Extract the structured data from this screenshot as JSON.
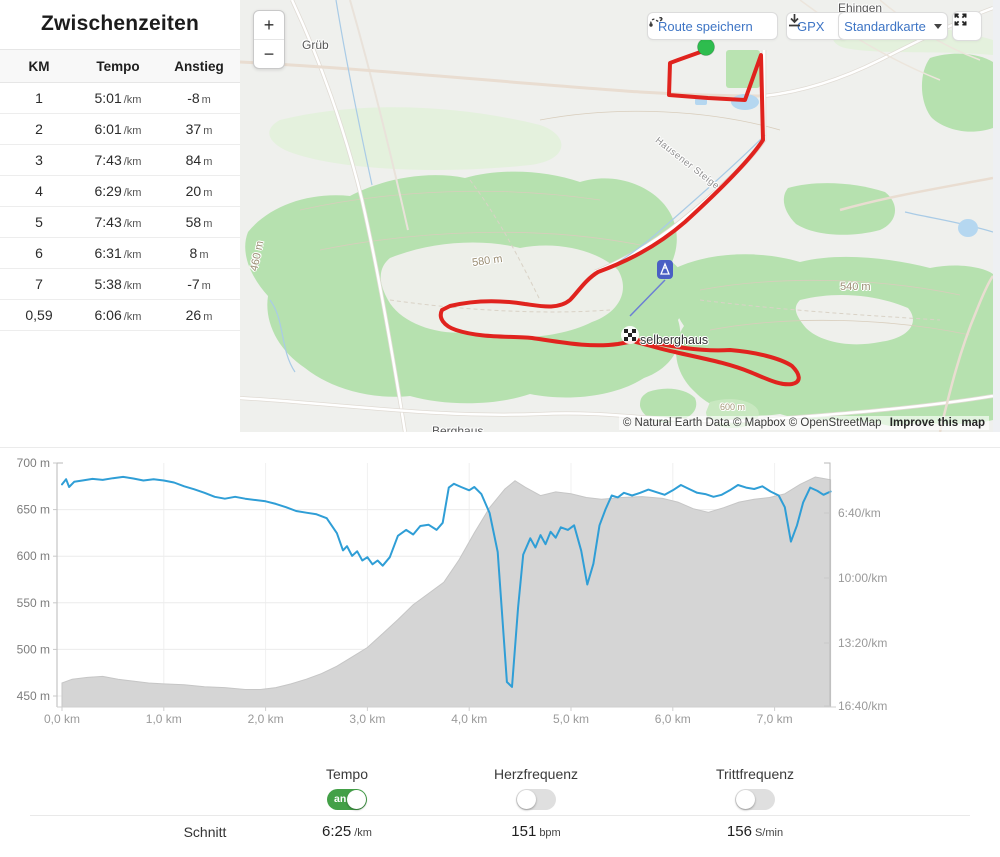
{
  "splits": {
    "title": "Zwischenzeiten",
    "columns": [
      "KM",
      "Tempo",
      "Anstieg"
    ],
    "rows": [
      {
        "km": "1",
        "tempo": "5:01",
        "tempo_unit": "/km",
        "anstieg": "-8",
        "anstieg_unit": "m"
      },
      {
        "km": "2",
        "tempo": "6:01",
        "tempo_unit": "/km",
        "anstieg": "37",
        "anstieg_unit": "m"
      },
      {
        "km": "3",
        "tempo": "7:43",
        "tempo_unit": "/km",
        "anstieg": "84",
        "anstieg_unit": "m"
      },
      {
        "km": "4",
        "tempo": "6:29",
        "tempo_unit": "/km",
        "anstieg": "20",
        "anstieg_unit": "m"
      },
      {
        "km": "5",
        "tempo": "7:43",
        "tempo_unit": "/km",
        "anstieg": "58",
        "anstieg_unit": "m"
      },
      {
        "km": "6",
        "tempo": "6:31",
        "tempo_unit": "/km",
        "anstieg": "8",
        "anstieg_unit": "m"
      },
      {
        "km": "7",
        "tempo": "5:38",
        "tempo_unit": "/km",
        "anstieg": "-7",
        "anstieg_unit": "m"
      },
      {
        "km": "0,59",
        "tempo": "6:06",
        "tempo_unit": "/km",
        "anstieg": "26",
        "anstieg_unit": "m"
      }
    ]
  },
  "map": {
    "zoom_in": "+",
    "zoom_out": "−",
    "buttons": {
      "save_route": "Route speichern",
      "gpx": "GPX",
      "style": "Standardkarte"
    },
    "labels": {
      "ehingen": "Ehingen",
      "grueb": "Grüb",
      "contour_580": "580 m",
      "contour_540": "540 m",
      "contour_460": "460 m",
      "contour_600": "600 m",
      "selberghaus": "selberghaus",
      "berghaus": "Berghaus",
      "street": "Hausener Steige"
    },
    "attribution": {
      "copyright": "© Natural Earth Data © Mapbox © OpenStreetMap",
      "improve_link": "Improve this map"
    },
    "colors": {
      "route": "#e0231e",
      "start_marker": "#2ebd4e",
      "forest": "#b6e1af",
      "water": "#b5d7f0"
    }
  },
  "chart_data": {
    "type": "area+line",
    "x_axis": {
      "unit": "km",
      "range": [
        0,
        7.55
      ],
      "ticks": [
        {
          "label": "0,0 km",
          "value": 0
        },
        {
          "label": "1,0 km",
          "value": 1
        },
        {
          "label": "2,0 km",
          "value": 2
        },
        {
          "label": "3,0 km",
          "value": 3
        },
        {
          "label": "4,0 km",
          "value": 4
        },
        {
          "label": "5,0 km",
          "value": 5
        },
        {
          "label": "6,0 km",
          "value": 6
        },
        {
          "label": "7,0 km",
          "value": 7
        }
      ]
    },
    "left_axis": {
      "name": "elevation",
      "unit": "m",
      "range": [
        438,
        700
      ],
      "ticks": [
        {
          "label": "700 m",
          "value": 700
        },
        {
          "label": "650 m",
          "value": 650
        },
        {
          "label": "600 m",
          "value": 600
        },
        {
          "label": "550 m",
          "value": 550
        },
        {
          "label": "500 m",
          "value": 500
        },
        {
          "label": "450 m",
          "value": 450
        }
      ]
    },
    "right_axis": {
      "name": "pace",
      "unit": "min/km",
      "range_seconds": [
        246,
        997
      ],
      "ticks": [
        {
          "label": "6:40/km",
          "value": 400
        },
        {
          "label": "10:00/km",
          "value": 600
        },
        {
          "label": "13:20/km",
          "value": 800
        },
        {
          "label": "16:40/km",
          "value": 1000
        }
      ]
    },
    "series": [
      {
        "name": "elevation",
        "type": "area",
        "color": "#d5d5d5",
        "axis": "left",
        "points": [
          [
            0,
            464
          ],
          [
            0.1,
            468
          ],
          [
            0.25,
            470
          ],
          [
            0.4,
            471
          ],
          [
            0.55,
            468
          ],
          [
            0.7,
            466
          ],
          [
            0.85,
            464
          ],
          [
            1.0,
            463
          ],
          [
            1.2,
            462
          ],
          [
            1.4,
            460
          ],
          [
            1.6,
            459
          ],
          [
            1.8,
            457
          ],
          [
            1.95,
            457
          ],
          [
            2.1,
            459
          ],
          [
            2.25,
            463
          ],
          [
            2.4,
            468
          ],
          [
            2.55,
            474
          ],
          [
            2.7,
            482
          ],
          [
            2.85,
            492
          ],
          [
            3.0,
            502
          ],
          [
            3.15,
            517
          ],
          [
            3.3,
            532
          ],
          [
            3.45,
            548
          ],
          [
            3.6,
            560
          ],
          [
            3.75,
            572
          ],
          [
            3.9,
            596
          ],
          [
            4.05,
            625
          ],
          [
            4.2,
            652
          ],
          [
            4.35,
            672
          ],
          [
            4.45,
            681
          ],
          [
            4.55,
            674
          ],
          [
            4.7,
            665
          ],
          [
            4.85,
            669
          ],
          [
            5.0,
            667
          ],
          [
            5.15,
            663
          ],
          [
            5.3,
            661
          ],
          [
            5.5,
            663
          ],
          [
            5.7,
            664
          ],
          [
            5.9,
            662
          ],
          [
            6.05,
            658
          ],
          [
            6.2,
            651
          ],
          [
            6.35,
            647
          ],
          [
            6.5,
            652
          ],
          [
            6.65,
            658
          ],
          [
            6.8,
            661
          ],
          [
            6.95,
            663
          ],
          [
            7.1,
            667
          ],
          [
            7.25,
            677
          ],
          [
            7.4,
            685
          ],
          [
            7.55,
            682
          ]
        ]
      },
      {
        "name": "pace",
        "type": "line",
        "color": "#2f9ed6",
        "axis": "right",
        "points": [
          [
            0,
            312
          ],
          [
            0.04,
            296
          ],
          [
            0.07,
            320
          ],
          [
            0.12,
            304
          ],
          [
            0.2,
            300
          ],
          [
            0.3,
            295
          ],
          [
            0.4,
            298
          ],
          [
            0.5,
            293
          ],
          [
            0.6,
            289
          ],
          [
            0.7,
            294
          ],
          [
            0.8,
            300
          ],
          [
            0.9,
            296
          ],
          [
            1.0,
            300
          ],
          [
            1.1,
            306
          ],
          [
            1.2,
            318
          ],
          [
            1.3,
            327
          ],
          [
            1.4,
            338
          ],
          [
            1.5,
            350
          ],
          [
            1.6,
            356
          ],
          [
            1.7,
            350
          ],
          [
            1.8,
            356
          ],
          [
            1.9,
            360
          ],
          [
            2.0,
            364
          ],
          [
            2.1,
            372
          ],
          [
            2.2,
            382
          ],
          [
            2.3,
            394
          ],
          [
            2.4,
            399
          ],
          [
            2.5,
            404
          ],
          [
            2.6,
            416
          ],
          [
            2.7,
            462
          ],
          [
            2.76,
            515
          ],
          [
            2.8,
            502
          ],
          [
            2.85,
            532
          ],
          [
            2.9,
            518
          ],
          [
            2.95,
            546
          ],
          [
            3.0,
            536
          ],
          [
            3.05,
            558
          ],
          [
            3.1,
            546
          ],
          [
            3.15,
            562
          ],
          [
            3.22,
            536
          ],
          [
            3.3,
            470
          ],
          [
            3.38,
            452
          ],
          [
            3.45,
            466
          ],
          [
            3.52,
            440
          ],
          [
            3.6,
            436
          ],
          [
            3.68,
            452
          ],
          [
            3.74,
            430
          ],
          [
            3.8,
            322
          ],
          [
            3.85,
            310
          ],
          [
            3.92,
            320
          ],
          [
            4.0,
            330
          ],
          [
            4.05,
            320
          ],
          [
            4.12,
            342
          ],
          [
            4.2,
            400
          ],
          [
            4.28,
            520
          ],
          [
            4.37,
            920
          ],
          [
            4.42,
            935
          ],
          [
            4.48,
            690
          ],
          [
            4.53,
            528
          ],
          [
            4.6,
            478
          ],
          [
            4.65,
            506
          ],
          [
            4.7,
            468
          ],
          [
            4.75,
            496
          ],
          [
            4.8,
            458
          ],
          [
            4.85,
            476
          ],
          [
            4.9,
            444
          ],
          [
            4.97,
            452
          ],
          [
            5.03,
            438
          ],
          [
            5.1,
            516
          ],
          [
            5.16,
            620
          ],
          [
            5.22,
            556
          ],
          [
            5.28,
            438
          ],
          [
            5.34,
            388
          ],
          [
            5.4,
            346
          ],
          [
            5.46,
            352
          ],
          [
            5.52,
            338
          ],
          [
            5.6,
            346
          ],
          [
            5.68,
            338
          ],
          [
            5.76,
            328
          ],
          [
            5.84,
            336
          ],
          [
            5.92,
            344
          ],
          [
            6.0,
            330
          ],
          [
            6.08,
            314
          ],
          [
            6.16,
            326
          ],
          [
            6.24,
            338
          ],
          [
            6.32,
            342
          ],
          [
            6.4,
            350
          ],
          [
            6.48,
            344
          ],
          [
            6.56,
            330
          ],
          [
            6.64,
            314
          ],
          [
            6.72,
            322
          ],
          [
            6.8,
            326
          ],
          [
            6.88,
            318
          ],
          [
            6.96,
            334
          ],
          [
            7.04,
            346
          ],
          [
            7.1,
            382
          ],
          [
            7.16,
            488
          ],
          [
            7.22,
            438
          ],
          [
            7.28,
            368
          ],
          [
            7.35,
            322
          ],
          [
            7.42,
            332
          ],
          [
            7.48,
            344
          ],
          [
            7.55,
            334
          ]
        ]
      }
    ]
  },
  "controls": {
    "toggles": [
      {
        "label": "Tempo",
        "state": "on",
        "state_label": "an"
      },
      {
        "label": "Herzfrequenz",
        "state": "off"
      },
      {
        "label": "Trittfrequenz",
        "state": "off"
      }
    ],
    "summary": {
      "label": "Schnitt",
      "pace": {
        "value": "6:25",
        "unit": "/km"
      },
      "heart_rate": {
        "value": "151",
        "unit": "bpm"
      },
      "cadence": {
        "value": "156",
        "unit": "S/min"
      }
    }
  }
}
